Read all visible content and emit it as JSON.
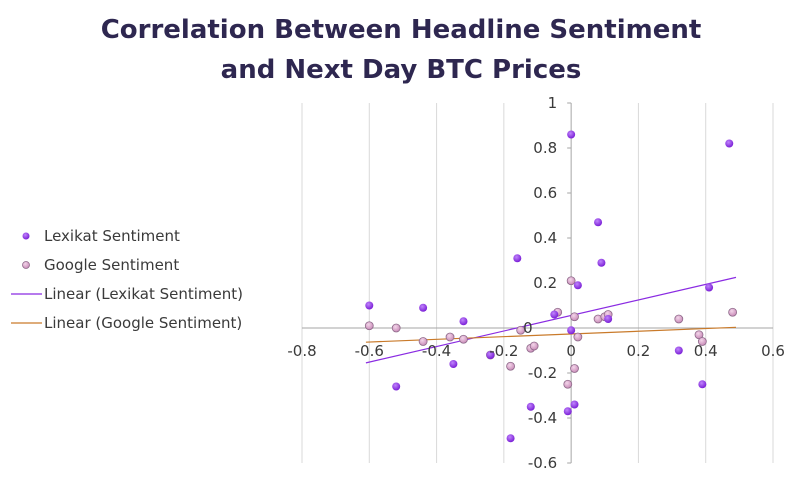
{
  "chart_data": {
    "type": "scatter",
    "title_lines": [
      "Correlation Between Headline Sentiment",
      "and Next Day BTC Prices"
    ],
    "xlabel": "",
    "ylabel": "",
    "xlim": [
      -0.8,
      0.6
    ],
    "ylim": [
      -0.6,
      1.0
    ],
    "x_ticks": [
      -0.8,
      -0.6,
      -0.4,
      -0.2,
      0,
      0.2,
      0.4,
      0.6
    ],
    "y_ticks": [
      -0.6,
      -0.4,
      -0.2,
      0,
      0.2,
      0.4,
      0.6,
      0.8,
      1
    ],
    "x_tick_labels": [
      "-0.8",
      "-0.6",
      "-0.4",
      "-0.2",
      "0",
      "0.2",
      "0.4",
      "0.6"
    ],
    "y_tick_labels": [
      "-0.6",
      "-0.4",
      "-0.2",
      "0",
      "0.2",
      "0.4",
      "0.6",
      "0.8",
      "1"
    ],
    "grid": "vertical",
    "legend_position": "left",
    "series": [
      {
        "name": "Lexikat Sentiment",
        "kind": "points",
        "color": "#8a2be2",
        "points": [
          [
            -0.6,
            0.1
          ],
          [
            -0.52,
            -0.26
          ],
          [
            -0.44,
            0.09
          ],
          [
            -0.35,
            -0.16
          ],
          [
            -0.32,
            0.03
          ],
          [
            -0.24,
            -0.12
          ],
          [
            -0.18,
            -0.49
          ],
          [
            -0.16,
            0.31
          ],
          [
            -0.12,
            -0.35
          ],
          [
            -0.05,
            0.06
          ],
          [
            0,
            0.86
          ],
          [
            0.02,
            0.19
          ],
          [
            0.08,
            0.47
          ],
          [
            0.09,
            0.29
          ],
          [
            0.11,
            0.04
          ],
          [
            0.32,
            -0.1
          ],
          [
            0.39,
            -0.25
          ],
          [
            0.41,
            0.18
          ],
          [
            0.47,
            0.82
          ],
          [
            -0.01,
            -0.37
          ],
          [
            0.01,
            -0.34
          ],
          [
            0.0,
            -0.01
          ]
        ]
      },
      {
        "name": "Google Sentiment",
        "kind": "points",
        "color": "#d4a0c8",
        "points": [
          [
            -0.6,
            0.01
          ],
          [
            -0.52,
            0.0
          ],
          [
            -0.44,
            -0.06
          ],
          [
            -0.36,
            -0.04
          ],
          [
            -0.32,
            -0.05
          ],
          [
            -0.24,
            -0.12
          ],
          [
            -0.18,
            -0.17
          ],
          [
            -0.15,
            -0.01
          ],
          [
            -0.12,
            -0.09
          ],
          [
            -0.11,
            -0.08
          ],
          [
            -0.04,
            0.07
          ],
          [
            -0.01,
            -0.25
          ],
          [
            0.0,
            0.21
          ],
          [
            0.01,
            0.05
          ],
          [
            0.01,
            -0.18
          ],
          [
            0.02,
            -0.04
          ],
          [
            0.08,
            0.04
          ],
          [
            0.1,
            0.05
          ],
          [
            0.11,
            0.06
          ],
          [
            0.32,
            0.04
          ],
          [
            0.38,
            -0.03
          ],
          [
            0.39,
            -0.06
          ],
          [
            0.48,
            0.07
          ]
        ]
      },
      {
        "name": "Linear (Lexikat Sentiment)",
        "kind": "line",
        "color": "#8a2be2",
        "line": [
          [
            -0.61,
            -0.155
          ],
          [
            0.49,
            0.225
          ]
        ]
      },
      {
        "name": "Linear (Google Sentiment)",
        "kind": "line",
        "color": "#c97a2a",
        "line": [
          [
            -0.61,
            -0.063
          ],
          [
            0.49,
            0.003
          ]
        ]
      }
    ]
  }
}
